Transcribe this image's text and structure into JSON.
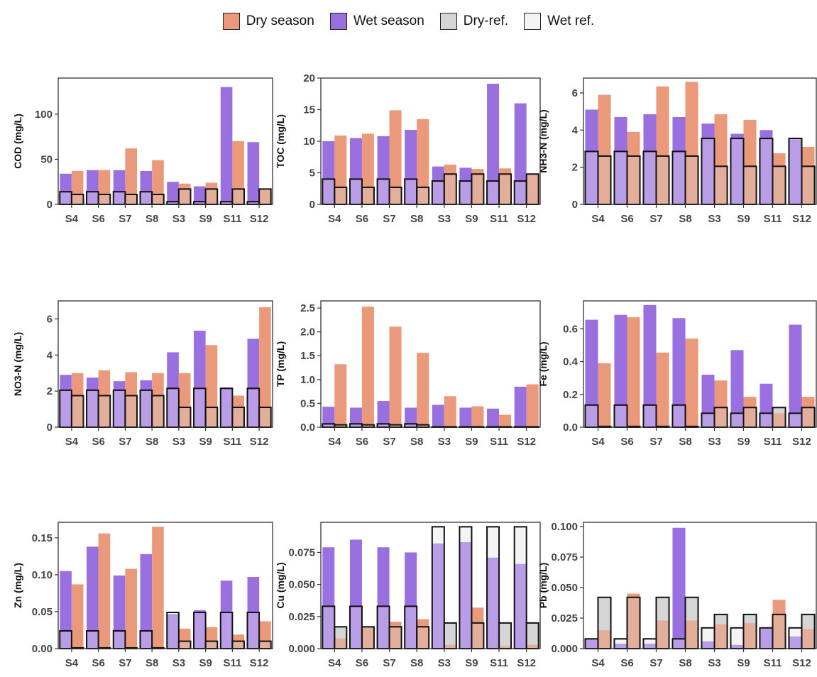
{
  "colors": {
    "dry": "#ea9a7b",
    "wet": "#9a6fe0",
    "dry_ref": "#d6d6d6",
    "wet_ref": "#f4f4f4"
  },
  "legend": [
    {
      "label": "Dry season",
      "color": "#ea9a7b"
    },
    {
      "label": "Wet season",
      "color": "#9a6fe0"
    },
    {
      "label": "Dry-ref.",
      "color": "#d6d6d6"
    },
    {
      "label": "Wet ref.",
      "color": "#f4f4f4"
    }
  ],
  "chart_data": [
    {
      "type": "bar",
      "ylabel": "COD (mg/L)",
      "categories": [
        "S4",
        "S6",
        "S7",
        "S8",
        "S3",
        "S9",
        "S11",
        "S12"
      ],
      "ylim": [
        0,
        140
      ],
      "yticks": [
        0,
        50,
        100
      ],
      "tick_labels": [
        "0",
        "50",
        "100"
      ],
      "series": [
        {
          "name": "Wet season",
          "values": [
            34,
            38,
            38,
            37,
            25,
            20,
            130,
            69
          ]
        },
        {
          "name": "Dry season",
          "values": [
            37,
            38,
            62,
            49,
            23,
            24,
            70,
            16
          ]
        },
        {
          "name": "Wet ref.",
          "values": [
            14,
            14,
            14,
            14,
            3,
            3,
            3,
            3
          ]
        },
        {
          "name": "Dry-ref.",
          "values": [
            11,
            11,
            11,
            11,
            17,
            17,
            17,
            17
          ]
        }
      ]
    },
    {
      "type": "bar",
      "ylabel": "TOC (mg/L)",
      "categories": [
        "S4",
        "S6",
        "S7",
        "S8",
        "S3",
        "S9",
        "S11",
        "S12"
      ],
      "ylim": [
        0,
        20
      ],
      "yticks": [
        0,
        5,
        10,
        15,
        20
      ],
      "tick_labels": [
        "0",
        "5",
        "10",
        "15",
        "20"
      ],
      "series": [
        {
          "name": "Wet season",
          "values": [
            10,
            10.5,
            10.8,
            11.8,
            6,
            5.8,
            19.1,
            16
          ]
        },
        {
          "name": "Dry season",
          "values": [
            10.9,
            11.2,
            14.9,
            13.5,
            6.3,
            5.6,
            5.7,
            4.7
          ]
        },
        {
          "name": "Wet ref.",
          "values": [
            4,
            4,
            4,
            4,
            3.7,
            3.7,
            3.7,
            3.7
          ]
        },
        {
          "name": "Dry-ref.",
          "values": [
            2.7,
            2.7,
            2.7,
            2.7,
            4.8,
            4.8,
            4.8,
            4.8
          ]
        }
      ]
    },
    {
      "type": "bar",
      "ylabel": "NH3-N (mg/L)",
      "categories": [
        "S4",
        "S6",
        "S7",
        "S8",
        "S3",
        "S9",
        "S11",
        "S12"
      ],
      "ylim": [
        0,
        6.8
      ],
      "yticks": [
        0,
        2,
        4,
        6
      ],
      "tick_labels": [
        "0",
        "2",
        "4",
        "6"
      ],
      "series": [
        {
          "name": "Wet season",
          "values": [
            5.1,
            4.7,
            4.85,
            4.7,
            4.35,
            3.8,
            4.0,
            3.5
          ]
        },
        {
          "name": "Dry season",
          "values": [
            5.9,
            3.9,
            6.35,
            6.6,
            4.85,
            4.55,
            2.75,
            3.1
          ]
        },
        {
          "name": "Wet ref.",
          "values": [
            2.85,
            2.85,
            2.85,
            2.85,
            3.55,
            3.55,
            3.55,
            3.55
          ]
        },
        {
          "name": "Dry-ref.",
          "values": [
            2.6,
            2.6,
            2.6,
            2.6,
            2.05,
            2.05,
            2.05,
            2.05
          ]
        }
      ]
    },
    {
      "type": "bar",
      "ylabel": "NO3-N (mg/L)",
      "categories": [
        "S4",
        "S6",
        "S7",
        "S8",
        "S3",
        "S9",
        "S11",
        "S12"
      ],
      "ylim": [
        0,
        7
      ],
      "yticks": [
        0,
        2,
        4,
        6
      ],
      "tick_labels": [
        "0",
        "2",
        "4",
        "6"
      ],
      "series": [
        {
          "name": "Wet season",
          "values": [
            2.9,
            2.75,
            2.55,
            2.6,
            4.15,
            5.35,
            2.2,
            4.9
          ]
        },
        {
          "name": "Dry season",
          "values": [
            3.0,
            3.15,
            3.05,
            3.0,
            3.0,
            4.55,
            1.75,
            6.65
          ]
        },
        {
          "name": "Wet ref.",
          "values": [
            2.05,
            2.05,
            2.05,
            2.05,
            2.15,
            2.15,
            2.15,
            2.15
          ]
        },
        {
          "name": "Dry-ref.",
          "values": [
            1.75,
            1.75,
            1.75,
            1.75,
            1.1,
            1.1,
            1.1,
            1.1
          ]
        }
      ]
    },
    {
      "type": "bar",
      "ylabel": "TP (mg/L)",
      "categories": [
        "S4",
        "S6",
        "S7",
        "S8",
        "S3",
        "S9",
        "S11",
        "S12"
      ],
      "ylim": [
        0,
        2.65
      ],
      "yticks": [
        0,
        0.5,
        1.0,
        1.5,
        2.0,
        2.5
      ],
      "tick_labels": [
        "0.0",
        "0.5",
        "1.0",
        "1.5",
        "2.0",
        "2.5"
      ],
      "series": [
        {
          "name": "Wet season",
          "values": [
            0.43,
            0.41,
            0.55,
            0.41,
            0.47,
            0.41,
            0.39,
            0.85
          ]
        },
        {
          "name": "Dry season",
          "values": [
            1.32,
            2.53,
            2.11,
            1.56,
            0.65,
            0.44,
            0.26,
            0.9
          ]
        },
        {
          "name": "Wet ref.",
          "values": [
            0.07,
            0.07,
            0.07,
            0.07,
            0.01,
            0.01,
            0.01,
            0.01
          ]
        },
        {
          "name": "Dry-ref.",
          "values": [
            0.05,
            0.05,
            0.05,
            0.05,
            0.01,
            0.01,
            0.01,
            0.01
          ]
        }
      ]
    },
    {
      "type": "bar",
      "ylabel": "Fe (mg/L)",
      "categories": [
        "S4",
        "S6",
        "S7",
        "S8",
        "S3",
        "S9",
        "S11",
        "S12"
      ],
      "ylim": [
        0,
        0.77
      ],
      "yticks": [
        0,
        0.2,
        0.4,
        0.6
      ],
      "tick_labels": [
        "0.0",
        "0.2",
        "0.4",
        "0.6"
      ],
      "series": [
        {
          "name": "Wet season",
          "values": [
            0.655,
            0.685,
            0.745,
            0.665,
            0.32,
            0.47,
            0.265,
            0.625
          ]
        },
        {
          "name": "Dry season",
          "values": [
            0.39,
            0.67,
            0.455,
            0.54,
            0.285,
            0.185,
            0.085,
            0.185
          ]
        },
        {
          "name": "Wet ref.",
          "values": [
            0.135,
            0.135,
            0.135,
            0.135,
            0.085,
            0.085,
            0.085,
            0.085
          ]
        },
        {
          "name": "Dry-ref.",
          "values": [
            0.005,
            0.005,
            0.005,
            0.005,
            0.12,
            0.12,
            0.12,
            0.12
          ]
        }
      ]
    },
    {
      "type": "bar",
      "ylabel": "Zn (mg/L)",
      "categories": [
        "S4",
        "S6",
        "S7",
        "S8",
        "S3",
        "S9",
        "S11",
        "S12"
      ],
      "ylim": [
        0,
        0.171
      ],
      "yticks": [
        0,
        0.05,
        0.1,
        0.15
      ],
      "tick_labels": [
        "0.00",
        "0.05",
        "0.10",
        "0.15"
      ],
      "series": [
        {
          "name": "Wet season",
          "values": [
            0.105,
            0.138,
            0.099,
            0.128,
            0.047,
            0.052,
            0.092,
            0.097
          ]
        },
        {
          "name": "Dry season",
          "values": [
            0.087,
            0.156,
            0.108,
            0.165,
            0.027,
            0.029,
            0.019,
            0.037
          ]
        },
        {
          "name": "Wet ref.",
          "values": [
            0.024,
            0.024,
            0.024,
            0.024,
            0.049,
            0.049,
            0.049,
            0.049
          ]
        },
        {
          "name": "Dry-ref.",
          "values": [
            0.001,
            0.001,
            0.001,
            0.001,
            0.01,
            0.01,
            0.01,
            0.01
          ]
        }
      ]
    },
    {
      "type": "bar",
      "ylabel": "Cu (mg/L)",
      "categories": [
        "S4",
        "S6",
        "S7",
        "S8",
        "S3",
        "S9",
        "S11",
        "S12"
      ],
      "ylim": [
        0,
        0.0985
      ],
      "yticks": [
        0,
        0.025,
        0.05,
        0.075
      ],
      "tick_labels": [
        "0.000",
        "0.025",
        "0.050",
        "0.075"
      ],
      "series": [
        {
          "name": "Wet season",
          "values": [
            0.079,
            0.085,
            0.079,
            0.075,
            0.082,
            0.083,
            0.071,
            0.066
          ]
        },
        {
          "name": "Dry season",
          "values": [
            0.008,
            0.017,
            0.021,
            0.023,
            0.003,
            0.032,
            0.002,
            0.003
          ]
        },
        {
          "name": "Wet ref.",
          "values": [
            0.033,
            0.033,
            0.033,
            0.033,
            0.095,
            0.095,
            0.095,
            0.095
          ]
        },
        {
          "name": "Dry-ref.",
          "values": [
            0.017,
            0.017,
            0.017,
            0.017,
            0.02,
            0.02,
            0.02,
            0.02
          ]
        }
      ]
    },
    {
      "type": "bar",
      "ylabel": "Pb (mg/L)",
      "categories": [
        "S4",
        "S6",
        "S7",
        "S8",
        "S3",
        "S9",
        "S11",
        "S12"
      ],
      "ylim": [
        0,
        0.1035
      ],
      "yticks": [
        0,
        0.025,
        0.05,
        0.075,
        0.1
      ],
      "tick_labels": [
        "0.000",
        "0.025",
        "0.050",
        "0.075",
        "0.100"
      ],
      "series": [
        {
          "name": "Wet season",
          "values": [
            0.008,
            0.004,
            0.004,
            0.099,
            0.006,
            0.003,
            0.017,
            0.01
          ]
        },
        {
          "name": "Dry season",
          "values": [
            0.015,
            0.045,
            0.023,
            0.023,
            0.02,
            0.021,
            0.04,
            0.016
          ]
        },
        {
          "name": "Wet ref.",
          "values": [
            0.008,
            0.008,
            0.008,
            0.008,
            0.017,
            0.017,
            0.017,
            0.017
          ]
        },
        {
          "name": "Dry-ref.",
          "values": [
            0.042,
            0.042,
            0.042,
            0.042,
            0.028,
            0.028,
            0.028,
            0.028
          ]
        }
      ]
    }
  ]
}
